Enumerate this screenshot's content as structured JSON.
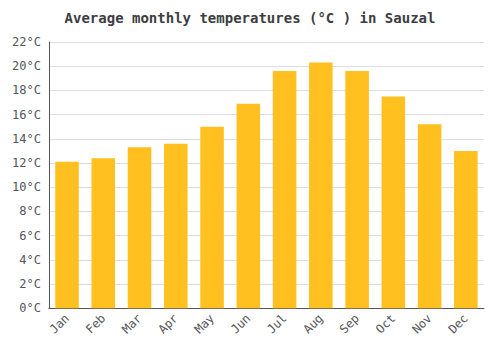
{
  "chart_data": {
    "type": "bar",
    "title": "Average monthly temperatures (°C ) in Sauzal",
    "categories": [
      "Jan",
      "Feb",
      "Mar",
      "Apr",
      "May",
      "Jun",
      "Jul",
      "Aug",
      "Sep",
      "Oct",
      "Nov",
      "Dec"
    ],
    "values": [
      12.1,
      12.4,
      13.3,
      13.6,
      15.0,
      16.9,
      19.6,
      20.3,
      19.6,
      17.5,
      15.2,
      13.0
    ],
    "color": "#FFC020",
    "ylim": [
      0,
      22
    ],
    "yticks": [
      {
        "value": 0,
        "label": "0°C"
      },
      {
        "value": 2,
        "label": "2°C"
      },
      {
        "value": 4,
        "label": "4°C"
      },
      {
        "value": 6,
        "label": "6°C"
      },
      {
        "value": 8,
        "label": "8°C"
      },
      {
        "value": 10,
        "label": "10°C"
      },
      {
        "value": 12,
        "label": "12°C"
      },
      {
        "value": 14,
        "label": "14°C"
      },
      {
        "value": 16,
        "label": "16°C"
      },
      {
        "value": 18,
        "label": "18°C"
      },
      {
        "value": 20,
        "label": "20°C"
      },
      {
        "value": 22,
        "label": "22°C"
      }
    ],
    "grid": true
  }
}
